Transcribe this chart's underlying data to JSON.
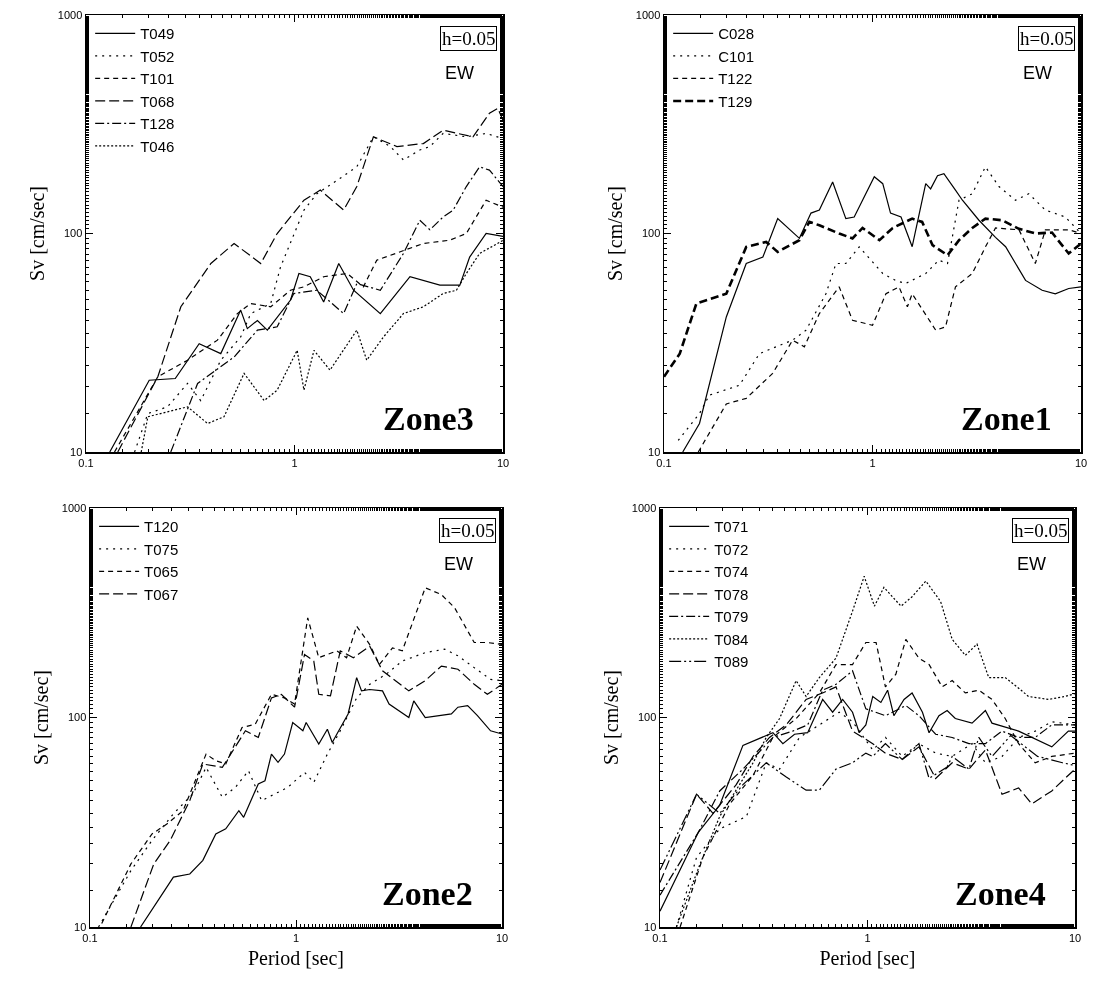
{
  "chart_data": [
    {
      "type": "line",
      "xlabel": null,
      "ylabel": "Sv [cm/sec]",
      "log": "xy",
      "grid": false,
      "legend": "top left",
      "marker": "none",
      "xlim": [
        0.1,
        10
      ],
      "xticks": [
        0.1,
        1,
        10
      ],
      "ylim": [
        10,
        1000
      ],
      "yticks": [
        10,
        100,
        1000
      ],
      "annotations": [
        "h=0.05",
        "EW",
        "Zone3"
      ],
      "series": [
        {
          "name": "T049",
          "color": "#000000",
          "line_style": "solid",
          "x": [
            0.13,
            0.201,
            0.268,
            0.349,
            0.443,
            0.552,
            0.594,
            0.664,
            0.741,
            0.957,
            1.05,
            1.19,
            1.38,
            1.63,
            1.92,
            2.58,
            3.58,
            4.98,
            6.21,
            6.92,
            8.3,
            10
          ],
          "values": [
            10,
            21.3,
            21.7,
            31.3,
            28.2,
            44.6,
            36.7,
            40,
            36.1,
            49.6,
            65.6,
            63.4,
            48.6,
            72.9,
            55,
            43,
            63.4,
            58,
            58,
            78,
            100,
            97
          ]
        },
        {
          "name": "T052",
          "color": "#000000",
          "line_style": "dotted",
          "x": [
            0.171,
            0.198,
            0.246,
            0.307,
            0.355,
            0.443,
            0.552,
            0.617,
            0.769,
            0.857,
            1.11,
            1.28,
            1.6,
            1.99,
            2.39,
            2.88,
            3.33,
            3.99,
            4.46,
            5.16,
            6.67,
            8.3,
            10
          ],
          "values": [
            10,
            15,
            16.1,
            20.6,
            17.2,
            26.3,
            33.6,
            43,
            47.8,
            70.3,
            128,
            152,
            175,
            202,
            277,
            250,
            217,
            241,
            250,
            287,
            277,
            287,
            272
          ]
        },
        {
          "name": "T101",
          "color": "#000000",
          "line_style": "dashed",
          "x": [
            0.137,
            0.221,
            0.307,
            0.427,
            0.532,
            0.617,
            0.769,
            0.957,
            1.11,
            1.38,
            1.79,
            2.14,
            2.48,
            4.15,
            5.56,
            6.67,
            8.3,
            10
          ],
          "values": [
            10,
            22.1,
            26.3,
            32.5,
            43,
            47.8,
            46.2,
            55,
            57,
            63.4,
            65.6,
            57,
            75.5,
            90,
            93.2,
            100,
            142,
            132
          ]
        },
        {
          "name": "T068",
          "color": "#000000",
          "line_style": "longdash",
          "x": [
            0.142,
            0.221,
            0.285,
            0.397,
            0.513,
            0.689,
            0.826,
            1.11,
            1.33,
            1.72,
            1.99,
            2.39,
            3.1,
            4.15,
            5.16,
            7.18,
            8.61,
            9.44,
            10
          ],
          "values": [
            10,
            22.1,
            46.2,
            72.9,
            90,
            72.9,
            100,
            142,
            158,
            128,
            164,
            277,
            250,
            258,
            297,
            277,
            355,
            374,
            330
          ]
        },
        {
          "name": "T128",
          "color": "#000000",
          "line_style": "dashdot",
          "x": [
            0.255,
            0.343,
            0.513,
            0.664,
            0.826,
            0.992,
            1.28,
            1.72,
            1.99,
            2.58,
            3.33,
            3.99,
            4.46,
            5.16,
            5.77,
            6.67,
            7.72,
            8.61,
            10
          ],
          "values": [
            10,
            20.6,
            27.2,
            36.1,
            37.4,
            53.1,
            55,
            43,
            59,
            55,
            81,
            115,
            104,
            119,
            128,
            164,
            202,
            195,
            164
          ]
        },
        {
          "name": "T046",
          "color": "#000000",
          "line_style": "densedot",
          "x": [
            0.184,
            0.198,
            0.307,
            0.383,
            0.459,
            0.573,
            0.715,
            0.826,
            1.03,
            1.11,
            1.24,
            1.48,
            1.99,
            2.22,
            2.67,
            3.33,
            4.15,
            5.16,
            5.98,
            6.67,
            7.72,
            10
          ],
          "values": [
            10,
            14.5,
            16.1,
            13.5,
            14.5,
            22.9,
            17.2,
            19.2,
            29.2,
            19.2,
            29.2,
            23.7,
            36.1,
            26.3,
            33.6,
            43,
            46.2,
            53.1,
            55,
            65.6,
            81,
            93
          ]
        }
      ]
    },
    {
      "type": "line",
      "xlabel": null,
      "ylabel": "Sv [cm/sec]",
      "log": "xy",
      "grid": false,
      "legend": "top left",
      "marker": "none",
      "xlim": [
        0.1,
        10
      ],
      "xticks": [
        0.1,
        1,
        10
      ],
      "ylim": [
        10,
        1000
      ],
      "yticks": [
        10,
        100,
        1000
      ],
      "annotations": [
        "h=0.05",
        "EW",
        "Zone1"
      ],
      "series": [
        {
          "name": "C028",
          "color": "#000000",
          "line_style": "solid",
          "x": [
            0.123,
            0.148,
            0.199,
            0.248,
            0.298,
            0.351,
            0.446,
            0.507,
            0.556,
            0.644,
            0.745,
            0.817,
            1.02,
            1.12,
            1.22,
            1.37,
            1.55,
            1.8,
            1.9,
            2.05,
            2.2,
            2.5,
            2.7,
            3.24,
            3.89,
            4.35,
            5.42,
            6.51,
            7.53,
            8.73,
            10
          ],
          "values": [
            10,
            13.5,
            41.5,
            72.9,
            78,
            117,
            95,
            124,
            128,
            172,
            117,
            119,
            182,
            169,
            124,
            119,
            87,
            169,
            160,
            184,
            188,
            158,
            142,
            115,
            96,
            87,
            61,
            55,
            53,
            56,
            57
          ]
        },
        {
          "name": "C101",
          "color": "#000000",
          "line_style": "dotted",
          "x": [
            0.117,
            0.148,
            0.165,
            0.23,
            0.287,
            0.345,
            0.414,
            0.48,
            0.598,
            0.668,
            0.745,
            0.863,
            1.12,
            1.29,
            1.44,
            1.8,
            2.08,
            2.29,
            2.6,
            3.01,
            3.48,
            4.04,
            4.85,
            5.62,
            6.75,
            8.41,
            10
          ],
          "values": [
            11.3,
            15,
            18.2,
            20.2,
            28.2,
            30.3,
            32.5,
            36.1,
            53,
            72.9,
            72.9,
            86.8,
            65.6,
            61,
            59,
            65.6,
            75.5,
            72.9,
            142,
            152,
            202,
            164,
            142,
            152,
            128,
            119,
            100
          ]
        },
        {
          "name": "T122",
          "color": "#000000",
          "line_style": "dashed",
          "x": [
            0.146,
            0.199,
            0.248,
            0.332,
            0.414,
            0.471,
            0.556,
            0.692,
            0.802,
            1.0,
            1.16,
            1.34,
            1.47,
            1.55,
            2.01,
            2.24,
            2.5,
            3.01,
            3.48,
            3.89,
            5.04,
            6.04,
            6.75,
            7.82,
            8.73,
            10
          ],
          "values": [
            10,
            16.6,
            17.6,
            22.9,
            32.5,
            30.3,
            43,
            57,
            40.1,
            38,
            53,
            57,
            46.2,
            53,
            36.1,
            37.4,
            57,
            65.6,
            86.8,
            106,
            104,
            72.9,
            104,
            104,
            104,
            100
          ]
        },
        {
          "name": "T129",
          "color": "#000000",
          "line_style": "heavydash",
          "x": [
            0.1,
            0.119,
            0.143,
            0.199,
            0.248,
            0.309,
            0.351,
            0.446,
            0.498,
            0.556,
            0.692,
            0.802,
            0.896,
            1.08,
            1.25,
            1.55,
            1.73,
            1.94,
            2.29,
            2.6,
            3.01,
            3.48,
            4.19,
            5.04,
            6.04,
            7.26,
            8.73,
            10
          ],
          "values": [
            22.1,
            28.2,
            47.8,
            53,
            86.8,
            91.5,
            82.4,
            93.2,
            113,
            109,
            100,
            95,
            106,
            93.2,
            106,
            117,
            113,
            88.5,
            79.5,
            93.2,
            106,
            117,
            115,
            105,
            100,
            101,
            81,
            90
          ]
        }
      ]
    },
    {
      "type": "line",
      "xlabel": "Period [sec]",
      "ylabel": "Sv [cm/sec]",
      "log": "xy",
      "grid": false,
      "legend": "top left",
      "marker": "none",
      "xlim": [
        0.1,
        10
      ],
      "xticks": [
        0.1,
        1,
        10
      ],
      "ylim": [
        10,
        1000
      ],
      "yticks": [
        10,
        100,
        1000
      ],
      "annotations": [
        "h=0.05",
        "EW",
        "Zone2"
      ],
      "series": [
        {
          "name": "T120",
          "color": "#000000",
          "line_style": "solid",
          "x": [
            0.176,
            0.254,
            0.305,
            0.353,
            0.408,
            0.456,
            0.528,
            0.557,
            0.656,
            0.707,
            0.76,
            0.818,
            0.879,
            0.964,
            1.08,
            1.12,
            1.29,
            1.42,
            1.5,
            1.58,
            1.79,
            1.97,
            2.08,
            2.28,
            2.63,
            2.83,
            3.53,
            3.73,
            4.24,
            5.68,
            6.11,
            6.81,
            7.6,
            8.8,
            10
          ],
          "values": [
            10,
            17.3,
            17.9,
            20.8,
            27.8,
            29.4,
            35.9,
            33.4,
            48.2,
            49.9,
            66.9,
            61.1,
            66.9,
            94.6,
            86.4,
            94.6,
            74.7,
            87.9,
            76,
            83.4,
            104,
            155,
            134,
            136,
            134,
            116,
            100,
            120,
            100,
            104,
            112,
            114,
            102,
            86.4,
            83.4
          ]
        },
        {
          "name": "T075",
          "color": "#000000",
          "line_style": "dotted",
          "x": [
            0.11,
            0.158,
            0.2,
            0.254,
            0.316,
            0.366,
            0.439,
            0.508,
            0.588,
            0.681,
            0.912,
            1.1,
            1.22,
            1.42,
            1.64,
            1.97,
            2.28,
            2.74,
            3.28,
            4.24,
            5.27,
            6.11,
            7.33,
            8.8,
            10
          ],
          "values": [
            10,
            18.6,
            25.9,
            34.7,
            43.2,
            57.8,
            41.6,
            46.4,
            55.7,
            40.1,
            46.4,
            54.7,
            49,
            66.9,
            86.4,
            124,
            144,
            161,
            186,
            204,
            212,
            197,
            173,
            152,
            150
          ]
        },
        {
          "name": "T065",
          "color": "#000000",
          "line_style": "dashed",
          "x": [
            0.114,
            0.158,
            0.2,
            0.236,
            0.283,
            0.366,
            0.408,
            0.456,
            0.547,
            0.634,
            0.76,
            0.879,
            0.984,
            1.14,
            1.29,
            1.42,
            1.58,
            1.76,
            1.97,
            2.28,
            2.54,
            2.94,
            3.28,
            4.24,
            5.08,
            5.89,
            7.33,
            8.49,
            10
          ],
          "values": [
            10.4,
            20,
            27.8,
            31,
            35.9,
            66.9,
            62.2,
            60,
            89.6,
            92.9,
            129,
            124,
            116,
            299,
            193,
            200,
            208,
            193,
            273,
            223,
            179,
            215,
            208,
            416,
            386,
            334,
            228,
            228,
            223
          ]
        },
        {
          "name": "T067",
          "color": "#000000",
          "line_style": "longdash",
          "x": [
            0.158,
            0.204,
            0.245,
            0.305,
            0.353,
            0.439,
            0.568,
            0.656,
            0.76,
            0.849,
            0.984,
            1.1,
            1.22,
            1.29,
            1.47,
            1.64,
            1.9,
            2.28,
            2.63,
            3.53,
            4.24,
            5.08,
            6.11,
            7.33,
            8.49,
            10
          ],
          "values": [
            10,
            20,
            25.9,
            40.1,
            60,
            57.8,
            86.4,
            80.3,
            124,
            129,
            112,
            200,
            186,
            129,
            127,
            208,
            193,
            219,
            167,
            134,
            150,
            176,
            170,
            144,
            129,
            144
          ]
        }
      ]
    },
    {
      "type": "line",
      "xlabel": "Period [sec]",
      "ylabel": "Sv [cm/sec]",
      "log": "xy",
      "grid": false,
      "legend": "top left",
      "marker": "none",
      "xlim": [
        0.1,
        10
      ],
      "xticks": [
        0.1,
        1,
        10
      ],
      "ylim": [
        10,
        1000
      ],
      "yticks": [
        10,
        100,
        1000
      ],
      "annotations": [
        "h=0.05",
        "EW",
        "Zone4"
      ],
      "series": [
        {
          "name": "T071",
          "color": "#000000",
          "line_style": "solid",
          "x": [
            0.1,
            0.153,
            0.194,
            0.251,
            0.35,
            0.391,
            0.445,
            0.515,
            0.608,
            0.679,
            0.759,
            0.847,
            0.912,
            0.982,
            1.06,
            1.16,
            1.25,
            1.34,
            1.5,
            1.64,
            1.84,
            1.98,
            2.21,
            2.42,
            2.65,
            3.19,
            3.7,
            3.98,
            5.35,
            7.73,
            9.29,
            10
          ],
          "values": [
            11.9,
            28.3,
            38.1,
            73.6,
            84.6,
            75,
            83.2,
            84.6,
            122,
            106,
            122,
            106,
            84.6,
            92.2,
            126,
            118,
            135,
            102,
            122,
            131,
            106,
            84.6,
            102,
            108,
            98.9,
            94,
            108,
            94,
            86.1,
            72.4,
            86.1,
            86.1
          ]
        },
        {
          "name": "T072",
          "color": "#000000",
          "line_style": "dotted",
          "x": [
            0.12,
            0.15,
            0.194,
            0.261,
            0.325,
            0.377,
            0.47,
            0.586,
            0.731,
            0.847,
            1.06,
            1.22,
            1.47,
            1.77,
            2.13,
            2.56,
            3.19,
            3.7,
            4.45,
            5.35,
            6.43,
            7.73,
            10
          ],
          "values": [
            10,
            21.5,
            29.4,
            33.7,
            60.8,
            56.7,
            80.3,
            92.2,
            106,
            95.5,
            70,
            80.3,
            65.2,
            75,
            67.6,
            65.2,
            75,
            60.8,
            65.2,
            80.3,
            86.1,
            95.5,
            92.2
          ]
        },
        {
          "name": "T074",
          "color": "#000000",
          "line_style": "dashed",
          "x": [
            0.125,
            0.161,
            0.217,
            0.281,
            0.35,
            0.453,
            0.586,
            0.705,
            0.847,
            0.982,
            1.1,
            1.22,
            1.37,
            1.53,
            1.77,
            1.98,
            2.29,
            2.56,
            2.96,
            3.44,
            3.98,
            4.61,
            5.35,
            6.43,
            7.73,
            10
          ],
          "values": [
            10,
            21.5,
            38.7,
            53,
            80.3,
            98.9,
            131,
            179,
            179,
            228,
            228,
            140,
            161,
            236,
            192,
            179,
            140,
            150,
            131,
            135,
            122,
            98.9,
            75,
            60.8,
            65.2,
            67.6
          ]
        },
        {
          "name": "T078",
          "color": "#000000",
          "line_style": "longdash",
          "x": [
            0.1,
            0.15,
            0.18,
            0.233,
            0.281,
            0.337,
            0.406,
            0.506,
            0.608,
            0.705,
            0.847,
            1.06,
            1.22,
            1.47,
            1.77,
            2.13,
            2.56,
            3.08,
            3.7,
            4.45,
            5.35,
            6.19,
            7.73,
            8.95,
            10
          ],
          "values": [
            16.3,
            43,
            34.9,
            47.8,
            65.2,
            80.3,
            92.2,
            122,
            131,
            140,
            86.1,
            75,
            67.6,
            63,
            72.4,
            51.2,
            60.8,
            56.7,
            70,
            43,
            46.1,
            38.7,
            44.6,
            51.2,
            56.7
          ]
        },
        {
          "name": "T079",
          "color": "#000000",
          "line_style": "dashdot",
          "x": [
            0.1,
            0.153,
            0.194,
            0.251,
            0.35,
            0.436,
            0.515,
            0.608,
            0.705,
            0.847,
            0.982,
            1.22,
            1.53,
            1.77,
            2.13,
            2.56,
            3.08,
            3.7,
            4.45,
            5.35,
            6.43,
            7.73,
            10
          ],
          "values": [
            14.2,
            28.3,
            44.6,
            56.7,
            80.3,
            86.1,
            92.2,
            135,
            144,
            167,
            110,
            102,
            114,
            102,
            83.2,
            80.3,
            75,
            75,
            86.1,
            80.3,
            80.3,
            92.2,
            92.2
          ]
        },
        {
          "name": "T084",
          "color": "#000000",
          "line_style": "densedot",
          "x": [
            0.12,
            0.156,
            0.194,
            0.281,
            0.325,
            0.377,
            0.453,
            0.506,
            0.586,
            0.705,
            0.847,
            0.964,
            1.08,
            1.2,
            1.45,
            1.64,
            1.91,
            2.25,
            2.56,
            2.96,
            3.37,
            3.84,
            4.61,
            5.35,
            5.97,
            7.45,
            8.95,
            10
          ],
          "values": [
            10,
            20,
            33.7,
            60.8,
            80.3,
            98.9,
            150,
            126,
            155,
            192,
            322,
            472,
            340,
            418,
            340,
            377,
            448,
            358,
            236,
            198,
            224,
            155,
            155,
            138,
            126,
            122,
            126,
            130
          ]
        },
        {
          "name": "T089",
          "color": "#000000",
          "line_style": "longdashdot",
          "x": [
            0.1,
            0.15,
            0.194,
            0.251,
            0.325,
            0.406,
            0.506,
            0.586,
            0.705,
            0.847,
            0.982,
            1.06,
            1.22,
            1.47,
            1.77,
            1.98,
            2.42,
            2.56,
            3.08,
            3.44,
            3.98,
            4.9,
            5.5,
            6.6,
            8.7,
            10
          ],
          "values": [
            18.7,
            43,
            34.9,
            47.8,
            60.8,
            52,
            45,
            45,
            56.7,
            60.8,
            67.6,
            65.2,
            75,
            63,
            75,
            51.2,
            58,
            65.2,
            56.7,
            80.3,
            65.2,
            82,
            75,
            65.2,
            60.8,
            59
          ]
        }
      ]
    }
  ]
}
